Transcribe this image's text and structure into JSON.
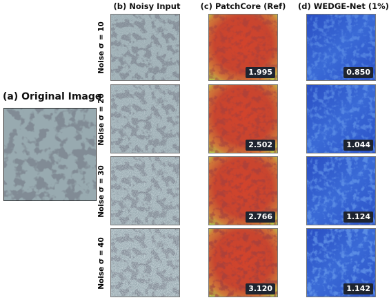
{
  "figure": {
    "original_title": "(a) Original Image",
    "columns": [
      {
        "id": "noisy",
        "title": "(b) Noisy Input"
      },
      {
        "id": "patchcore",
        "title": "(c) PatchCore (Ref)"
      },
      {
        "id": "wedge",
        "title": "(d) WEDGE-Net (1%)"
      }
    ],
    "rows": [
      {
        "label": "Noise σ = 10",
        "patchcore_score": "1.995",
        "wedge_score": "0.850"
      },
      {
        "label": "Noise σ = 20",
        "patchcore_score": "2.502",
        "wedge_score": "1.044"
      },
      {
        "label": "Noise σ = 30",
        "patchcore_score": "2.766",
        "wedge_score": "1.124"
      },
      {
        "label": "Noise σ = 40",
        "patchcore_score": "3.120",
        "wedge_score": "1.142"
      }
    ]
  },
  "colors": {
    "texture_base": "#8fa2a8",
    "texture_dark": "#38434d",
    "heat_red": "#c23d2a",
    "heat_blue": "#2f55c9"
  }
}
